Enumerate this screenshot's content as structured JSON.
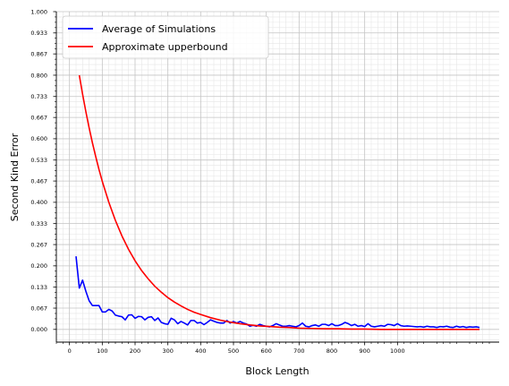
{
  "chart_data": {
    "type": "line",
    "xlabel": "Block Length",
    "ylabel": "Second Kind Error",
    "xlim": [
      -40,
      1310
    ],
    "ylim": [
      -0.04,
      1.0
    ],
    "xticks": [
      0,
      100,
      200,
      300,
      400,
      500,
      600,
      700,
      800,
      900,
      1000
    ],
    "xtick_labels": [
      "0",
      "100",
      "200",
      "300",
      "400",
      "500",
      "600",
      "700",
      "800",
      "900",
      "1000"
    ],
    "yticks": [
      0.0,
      0.067,
      0.133,
      0.2,
      0.267,
      0.333,
      0.4,
      0.467,
      0.533,
      0.6,
      0.667,
      0.733,
      0.8,
      0.867,
      0.933,
      1.0
    ],
    "ytick_labels": [
      "0.000",
      "0.067",
      "0.133",
      "0.200",
      "0.267",
      "0.333",
      "0.400",
      "0.467",
      "0.533",
      "0.600",
      "0.667",
      "0.733",
      "0.800",
      "0.867",
      "0.933",
      "1.000"
    ],
    "grid": true,
    "minor_grid": true,
    "legend_position": "top-left",
    "series": [
      {
        "name": "Average of Simulations",
        "color": "#0000ff",
        "x": [
          20,
          30,
          40,
          50,
          60,
          70,
          80,
          90,
          100,
          110,
          120,
          130,
          140,
          150,
          160,
          170,
          180,
          190,
          200,
          210,
          220,
          230,
          240,
          250,
          260,
          270,
          280,
          290,
          300,
          310,
          320,
          330,
          340,
          350,
          360,
          370,
          380,
          390,
          400,
          410,
          420,
          430,
          440,
          450,
          460,
          470,
          480,
          490,
          500,
          510,
          520,
          530,
          540,
          550,
          560,
          570,
          580,
          590,
          600,
          610,
          620,
          630,
          640,
          650,
          660,
          670,
          680,
          690,
          700,
          710,
          720,
          730,
          740,
          750,
          760,
          770,
          780,
          790,
          800,
          810,
          820,
          830,
          840,
          850,
          860,
          870,
          880,
          890,
          900,
          910,
          920,
          930,
          940,
          950,
          960,
          970,
          980,
          990,
          1000,
          1010,
          1020,
          1030,
          1040,
          1050,
          1060,
          1070,
          1080,
          1090,
          1100,
          1110,
          1120,
          1130,
          1140,
          1150,
          1160,
          1170,
          1180,
          1190,
          1200,
          1210,
          1220,
          1230,
          1240,
          1250
        ],
        "y": [
          0.23,
          0.13,
          0.155,
          0.12,
          0.09,
          0.075,
          0.075,
          0.075,
          0.055,
          0.055,
          0.063,
          0.058,
          0.045,
          0.042,
          0.04,
          0.03,
          0.045,
          0.046,
          0.035,
          0.041,
          0.04,
          0.03,
          0.038,
          0.04,
          0.028,
          0.036,
          0.022,
          0.018,
          0.016,
          0.035,
          0.03,
          0.018,
          0.025,
          0.02,
          0.014,
          0.028,
          0.028,
          0.02,
          0.022,
          0.015,
          0.022,
          0.03,
          0.026,
          0.022,
          0.02,
          0.02,
          0.028,
          0.02,
          0.025,
          0.02,
          0.025,
          0.02,
          0.017,
          0.01,
          0.013,
          0.01,
          0.016,
          0.012,
          0.01,
          0.008,
          0.012,
          0.018,
          0.014,
          0.01,
          0.01,
          0.012,
          0.01,
          0.008,
          0.012,
          0.02,
          0.01,
          0.008,
          0.012,
          0.014,
          0.01,
          0.016,
          0.016,
          0.012,
          0.018,
          0.012,
          0.012,
          0.016,
          0.022,
          0.018,
          0.012,
          0.016,
          0.01,
          0.012,
          0.009,
          0.018,
          0.01,
          0.008,
          0.01,
          0.012,
          0.01,
          0.016,
          0.015,
          0.012,
          0.018,
          0.012,
          0.01,
          0.011,
          0.01,
          0.009,
          0.008,
          0.009,
          0.007,
          0.01,
          0.008,
          0.008,
          0.006,
          0.009,
          0.008,
          0.01,
          0.007,
          0.006,
          0.01,
          0.007,
          0.009,
          0.006,
          0.008,
          0.007,
          0.008,
          0.006
        ]
      },
      {
        "name": "Approximate upperbound",
        "color": "#ff0000",
        "x": [
          30,
          40,
          50,
          60,
          70,
          80,
          90,
          100,
          120,
          140,
          160,
          180,
          200,
          220,
          240,
          260,
          280,
          300,
          320,
          340,
          360,
          380,
          400,
          430,
          460,
          490,
          520,
          550,
          580,
          610,
          640,
          670,
          700,
          740,
          780,
          820,
          860,
          900,
          950,
          1000,
          1050,
          1100,
          1150,
          1200,
          1250
        ],
        "y": [
          0.8,
          0.74,
          0.685,
          0.634,
          0.587,
          0.544,
          0.503,
          0.466,
          0.4,
          0.343,
          0.294,
          0.252,
          0.216,
          0.185,
          0.159,
          0.136,
          0.117,
          0.1,
          0.086,
          0.074,
          0.063,
          0.054,
          0.047,
          0.037,
          0.029,
          0.023,
          0.018,
          0.014,
          0.011,
          0.009,
          0.007,
          0.006,
          0.004,
          0.003,
          0.002,
          0.002,
          0.001,
          0.001,
          0.0,
          0.0,
          0.0,
          0.0,
          0.0,
          0.0,
          0.0
        ]
      }
    ]
  }
}
